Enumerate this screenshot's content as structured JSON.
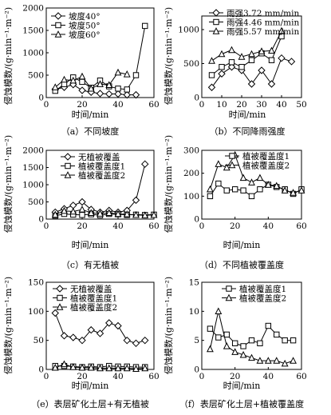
{
  "figure": {
    "panels": [
      {
        "ylabel": "侵蚀模数/(g·min⁻¹·m⁻²)",
        "xlabel": "时间/min",
        "caption": "（a）不同坡度"
      },
      {
        "ylabel": "侵蚀模数/(g·min⁻¹·m⁻²)",
        "xlabel": "时间/min",
        "caption": "（b）不同降雨强度"
      },
      {
        "ylabel": "侵蚀模数/(g·min⁻¹·m⁻²)",
        "xlabel": "时间/min",
        "caption": "（c）有无植被"
      },
      {
        "ylabel": "侵蚀模数/(g·min⁻¹·m⁻²)",
        "xlabel": "时间/min",
        "caption": "（d）不同植被覆盖度"
      },
      {
        "ylabel": "侵蚀模数/(g·min⁻¹·m⁻²)",
        "xlabel": "时间/min",
        "caption": "（e）表层矿化土层+有无植被"
      },
      {
        "ylabel": "侵蚀模数/(g·min⁻¹·m⁻²)",
        "xlabel": "时间/min",
        "caption": "（f）表层矿化土层+植被覆盖度"
      }
    ]
  },
  "chart_data": [
    {
      "type": "line",
      "caption": "（a）不同坡度",
      "xlabel": "时间/min",
      "ylabel": "侵蚀模数/(g·min⁻¹·m⁻²)",
      "xlim": [
        0,
        60
      ],
      "ylim": [
        0,
        2000
      ],
      "xticks": [
        0,
        20,
        40,
        60
      ],
      "yticks": [
        0,
        500,
        1000,
        1500,
        2000
      ],
      "legend_position": "top-left",
      "series": [
        {
          "name": "坡度40°",
          "marker": "diamond",
          "x": [
            5,
            10,
            15,
            20,
            25,
            30,
            35,
            40,
            45,
            50
          ],
          "y": [
            180,
            230,
            290,
            160,
            120,
            90,
            80,
            80,
            60,
            60
          ]
        },
        {
          "name": "坡度50°",
          "marker": "square",
          "x": [
            5,
            10,
            15,
            20,
            25,
            30,
            35,
            40,
            45,
            50,
            55
          ],
          "y": [
            150,
            300,
            450,
            350,
            220,
            380,
            250,
            200,
            180,
            500,
            1600
          ]
        },
        {
          "name": "坡度60°",
          "marker": "triangle",
          "x": [
            5,
            10,
            15,
            20,
            25,
            30,
            35,
            40,
            45
          ],
          "y": [
            230,
            400,
            380,
            470,
            200,
            300,
            280,
            560,
            520
          ]
        }
      ]
    },
    {
      "type": "line",
      "caption": "（b）不同降雨强度",
      "xlabel": "时间/min",
      "ylabel": "侵蚀模数/(g·min⁻¹·m⁻²)",
      "xlim": [
        0,
        50
      ],
      "ylim": [
        0,
        1200
      ],
      "xticks": [
        0,
        10,
        20,
        30,
        40,
        50
      ],
      "yticks": [
        0,
        500,
        1000
      ],
      "legend_position": "top",
      "series": [
        {
          "name": "雨强3.72 mm/min",
          "marker": "diamond",
          "x": [
            5,
            10,
            15,
            20,
            25,
            30,
            35,
            40,
            45
          ],
          "y": [
            150,
            350,
            450,
            400,
            200,
            400,
            200,
            580,
            530
          ]
        },
        {
          "name": "雨强4.46 mm/min",
          "marker": "square",
          "x": [
            5,
            10,
            15,
            20,
            25,
            30,
            35,
            40
          ],
          "y": [
            330,
            450,
            520,
            450,
            550,
            650,
            550,
            900
          ]
        },
        {
          "name": "雨强5.57 mm/min",
          "marker": "triangle",
          "x": [
            5,
            10,
            15,
            20,
            25,
            30,
            35,
            40
          ],
          "y": [
            540,
            640,
            700,
            600,
            640,
            680,
            690,
            980
          ]
        }
      ]
    },
    {
      "type": "line",
      "caption": "（c）有无植被",
      "xlabel": "时间/min",
      "ylabel": "侵蚀模数/(g·min⁻¹·m⁻²)",
      "xlim": [
        0,
        60
      ],
      "ylim": [
        0,
        2000
      ],
      "xticks": [
        0,
        20,
        40,
        60
      ],
      "yticks": [
        0,
        500,
        1000,
        1500,
        2000
      ],
      "legend_position": "top-left",
      "series": [
        {
          "name": "无植被覆盖",
          "marker": "diamond",
          "x": [
            5,
            10,
            15,
            20,
            25,
            30,
            35,
            40,
            45,
            50,
            55
          ],
          "y": [
            200,
            300,
            400,
            500,
            280,
            200,
            250,
            200,
            250,
            550,
            1600
          ]
        },
        {
          "name": "植被覆盖度1",
          "marker": "square",
          "x": [
            5,
            10,
            15,
            20,
            25,
            30,
            35,
            40,
            45,
            50,
            55,
            60
          ],
          "y": [
            100,
            150,
            130,
            120,
            140,
            110,
            150,
            140,
            120,
            130,
            120,
            130
          ]
        },
        {
          "name": "植被覆盖度2",
          "marker": "triangle",
          "x": [
            5,
            10,
            15,
            20,
            25,
            30,
            35,
            40,
            45,
            50,
            55,
            60
          ],
          "y": [
            130,
            240,
            220,
            280,
            180,
            160,
            180,
            150,
            140,
            120,
            110,
            120
          ]
        }
      ]
    },
    {
      "type": "line",
      "caption": "（d）不同植被覆盖度",
      "xlabel": "时间/min",
      "ylabel": "侵蚀模数/(g·min⁻¹·m⁻²)",
      "xlim": [
        0,
        60
      ],
      "ylim": [
        0,
        300
      ],
      "xticks": [
        0,
        20,
        40,
        60
      ],
      "yticks": [
        0,
        100,
        200,
        300
      ],
      "legend_position": "top-right",
      "series": [
        {
          "name": "植被覆盖度1",
          "marker": "square",
          "x": [
            5,
            10,
            15,
            20,
            25,
            30,
            35,
            40,
            45,
            50,
            55,
            60
          ],
          "y": [
            100,
            155,
            125,
            130,
            125,
            100,
            130,
            150,
            140,
            130,
            110,
            130
          ]
        },
        {
          "name": "植被覆盖度2",
          "marker": "triangle",
          "x": [
            5,
            10,
            15,
            20,
            25,
            30,
            35,
            40,
            45,
            50,
            55,
            60
          ],
          "y": [
            130,
            240,
            225,
            280,
            180,
            160,
            180,
            150,
            145,
            125,
            115,
            125
          ]
        }
      ]
    },
    {
      "type": "line",
      "caption": "（e）表层矿化土层+有无植被",
      "xlabel": "时间/min",
      "ylabel": "侵蚀模数/(g·min⁻¹·m⁻²)",
      "xlim": [
        0,
        60
      ],
      "ylim": [
        0,
        150
      ],
      "xticks": [
        0,
        20,
        40,
        60
      ],
      "yticks": [
        0,
        50,
        100,
        150
      ],
      "legend_position": "top-right",
      "series": [
        {
          "name": "无植被覆盖",
          "marker": "diamond",
          "x": [
            5,
            10,
            15,
            20,
            25,
            30,
            35,
            40,
            45,
            50,
            55
          ],
          "y": [
            97,
            58,
            55,
            50,
            68,
            62,
            80,
            75,
            50,
            45,
            50
          ]
        },
        {
          "name": "植被覆盖度1",
          "marker": "square",
          "x": [
            5,
            10,
            15,
            20,
            25,
            30,
            35,
            40,
            45,
            50,
            55
          ],
          "y": [
            6,
            6,
            5,
            4,
            5,
            4,
            6,
            5,
            5,
            4,
            4
          ]
        },
        {
          "name": "植被覆盖度2",
          "marker": "triangle",
          "x": [
            5,
            10,
            15,
            20,
            25,
            30,
            35,
            40,
            45,
            50,
            55
          ],
          "y": [
            3,
            9,
            4,
            3,
            3,
            2,
            2,
            2,
            2,
            1,
            2
          ]
        }
      ]
    },
    {
      "type": "line",
      "caption": "（f）表层矿化土层+植被覆盖度",
      "xlabel": "时间/min",
      "ylabel": "侵蚀模数/(g·min⁻¹·m⁻²)",
      "xlim": [
        0,
        60
      ],
      "ylim": [
        0,
        15
      ],
      "xticks": [
        0,
        20,
        40,
        60
      ],
      "yticks": [
        0,
        5,
        10,
        15
      ],
      "legend_position": "top-right",
      "series": [
        {
          "name": "植被覆盖度1",
          "marker": "square",
          "x": [
            5,
            10,
            15,
            20,
            25,
            30,
            35,
            40,
            45,
            50,
            55
          ],
          "y": [
            7,
            5.5,
            6,
            4.5,
            4,
            5,
            4.5,
            7.5,
            6,
            5,
            5
          ]
        },
        {
          "name": "植被覆盖度2",
          "marker": "triangle",
          "x": [
            5,
            10,
            15,
            20,
            25,
            30,
            35,
            40,
            45,
            50,
            55
          ],
          "y": [
            3.5,
            10,
            4,
            3,
            2.5,
            2,
            1.5,
            1.5,
            1.5,
            1,
            1.5
          ]
        }
      ]
    }
  ]
}
